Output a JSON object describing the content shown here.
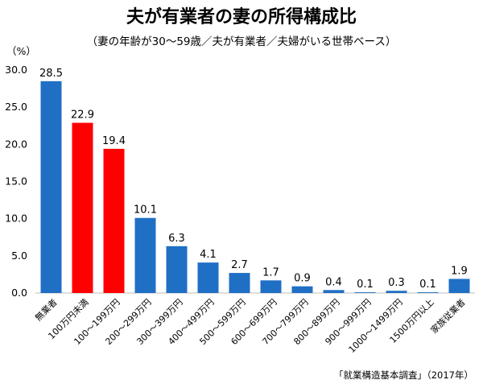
{
  "chart_data": {
    "type": "bar",
    "title": "夫が有業者の妻の所得構成比",
    "subtitle": "（妻の年齢が30～59歳／夫が有業者／夫婦がいる世帯ベース）",
    "unit": "（%）",
    "source": "「就業構造基本調査」（2017年）",
    "ylim": [
      0,
      30
    ],
    "yticks": [
      "0.0",
      "5.0",
      "10.0",
      "15.0",
      "20.0",
      "25.0",
      "30.0"
    ],
    "grid": false,
    "categories": [
      "無業者",
      "100万円未満",
      "100～199万円",
      "200～299万円",
      "300～399万円",
      "400～499万円",
      "500～599万円",
      "600～699万円",
      "700～799万円",
      "800～899万円",
      "900～999万円",
      "1000～1499万円",
      "1500万円以上",
      "家族従業者"
    ],
    "values": [
      28.5,
      22.9,
      19.4,
      10.1,
      6.3,
      4.1,
      2.7,
      1.7,
      0.9,
      0.4,
      0.1,
      0.3,
      0.1,
      1.9
    ],
    "value_labels": [
      "28.5",
      "22.9",
      "19.4",
      "10.1",
      "6.3",
      "4.1",
      "2.7",
      "1.7",
      "0.9",
      "0.4",
      "0.1",
      "0.3",
      "0.1",
      "1.9"
    ],
    "colors": [
      "#1f6fc5",
      "#ff0000",
      "#ff0000",
      "#1f6fc5",
      "#1f6fc5",
      "#1f6fc5",
      "#1f6fc5",
      "#1f6fc5",
      "#1f6fc5",
      "#1f6fc5",
      "#1f6fc5",
      "#1f6fc5",
      "#1f6fc5",
      "#1f6fc5"
    ]
  }
}
